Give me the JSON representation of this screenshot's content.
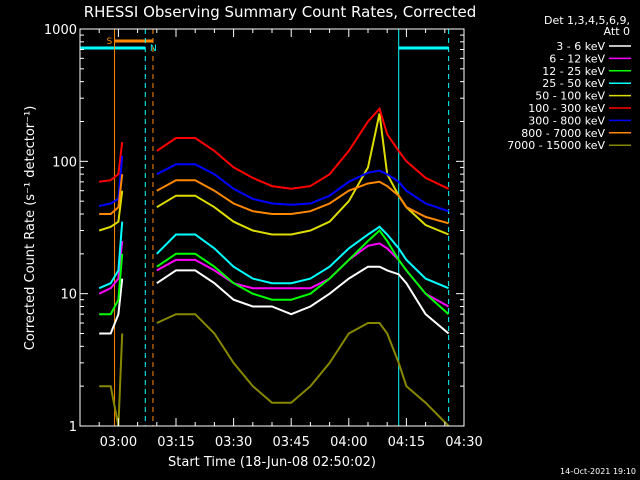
{
  "chart_data": {
    "type": "line",
    "title": "RHESSI Observing Summary Count Rates, Corrected",
    "xlabel": "Start Time (18-Jun-08 02:50:02)",
    "ylabel": "Corrected Count Rate (s⁻¹ detector⁻¹)",
    "yscale": "log",
    "ylim": [
      1,
      1000
    ],
    "xlim_minutes_after_0250": [
      0,
      100
    ],
    "x_ticks": [
      "03:00",
      "03:15",
      "03:30",
      "03:45",
      "04:00",
      "04:15",
      "04:30"
    ],
    "y_ticks": [
      "1",
      "10",
      "100",
      "1000"
    ],
    "legend_header": [
      "Det 1,3,4,5,6,9,",
      "Att 0"
    ],
    "legend_placement": "right",
    "flags": {
      "saa_label": "S",
      "night_label": "N",
      "saa_interval": [
        "02:59",
        "03:09"
      ],
      "night_intervals": [
        [
          "02:50",
          "03:07"
        ],
        [
          "04:13",
          "04:26"
        ]
      ],
      "markers": [
        "02:59",
        "03:07",
        "03:09",
        "04:13",
        "04:26"
      ]
    },
    "x_sample_times": [
      "02:55",
      "02:58",
      "03:00",
      "03:01",
      "03:10",
      "03:15",
      "03:20",
      "03:25",
      "03:30",
      "03:35",
      "03:40",
      "03:45",
      "03:50",
      "03:55",
      "04:00",
      "04:05",
      "04:08",
      "04:10",
      "04:13",
      "04:15",
      "04:20",
      "04:26"
    ],
    "series": [
      {
        "name": "3 - 6 keV",
        "color": "#ffffff",
        "values": [
          5,
          5,
          7,
          13,
          12,
          15,
          15,
          12,
          9,
          8,
          8,
          7,
          8,
          10,
          13,
          16,
          16,
          15,
          14,
          12,
          7,
          5
        ]
      },
      {
        "name": "6 - 12 keV",
        "color": "#ff00ff",
        "values": [
          10,
          11,
          13,
          25,
          15,
          18,
          18,
          15,
          12,
          11,
          11,
          11,
          11,
          13,
          18,
          23,
          24,
          22,
          18,
          15,
          10,
          8
        ]
      },
      {
        "name": "12 - 25 keV",
        "color": "#00ff00",
        "values": [
          7,
          7,
          9,
          20,
          16,
          20,
          20,
          16,
          12,
          10,
          9,
          9,
          10,
          13,
          18,
          25,
          30,
          25,
          18,
          15,
          10,
          7
        ]
      },
      {
        "name": "25 - 50 keV",
        "color": "#00ffff",
        "values": [
          11,
          12,
          15,
          35,
          20,
          28,
          28,
          22,
          16,
          13,
          12,
          12,
          13,
          16,
          22,
          28,
          32,
          28,
          22,
          18,
          13,
          11
        ]
      },
      {
        "name": "50 - 100 keV",
        "color": "#dddd00",
        "values": [
          30,
          32,
          35,
          60,
          45,
          55,
          55,
          45,
          35,
          30,
          28,
          28,
          30,
          35,
          50,
          90,
          230,
          80,
          55,
          45,
          33,
          28
        ]
      },
      {
        "name": "100 - 300 keV",
        "color": "#ff0000",
        "values": [
          70,
          72,
          80,
          140,
          120,
          150,
          150,
          120,
          90,
          75,
          65,
          62,
          65,
          80,
          120,
          200,
          250,
          160,
          120,
          100,
          75,
          62
        ]
      },
      {
        "name": "300 - 800 keV",
        "color": "#0000ff",
        "values": [
          46,
          48,
          52,
          110,
          80,
          95,
          95,
          80,
          62,
          52,
          48,
          47,
          48,
          55,
          70,
          82,
          85,
          80,
          70,
          60,
          48,
          42
        ]
      },
      {
        "name": "800 - 7000 keV",
        "color": "#ff8800",
        "values": [
          40,
          40,
          45,
          80,
          60,
          72,
          72,
          60,
          48,
          42,
          40,
          40,
          42,
          48,
          60,
          68,
          70,
          65,
          55,
          45,
          38,
          34
        ]
      },
      {
        "name": "7000 - 15000 keV",
        "color": "#888800",
        "values": [
          2,
          2,
          1,
          5,
          6,
          7,
          7,
          5,
          3,
          2,
          1.5,
          1.5,
          2,
          3,
          5,
          6,
          6,
          5,
          3,
          2,
          1.5,
          1
        ]
      }
    ]
  },
  "footer": {
    "date": "14-Oct-2021 19:10"
  }
}
